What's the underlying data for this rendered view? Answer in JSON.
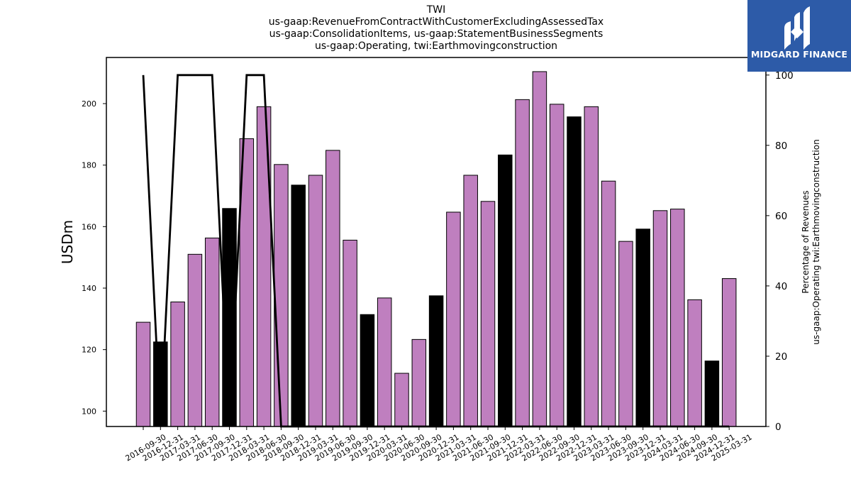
{
  "title_lines": [
    "TWI",
    "us-gaap:RevenueFromContractWithCustomerExcludingAssessedTax",
    "us-gaap:ConsolidationItems, us-gaap:StatementBusinessSegments",
    "us-gaap:Operating, twi:Earthmovingconstruction"
  ],
  "logo": {
    "text": "MIDGARD FINANCE",
    "bg_color": "#2d5ba8",
    "fg_color": "#ffffff"
  },
  "chart_data": {
    "type": "bar",
    "categories": [
      "2016-09-30",
      "2016-12-31",
      "2017-03-31",
      "2017-06-30",
      "2017-09-30",
      "2017-12-31",
      "2018-03-31",
      "2018-06-30",
      "2018-09-30",
      "2018-12-31",
      "2019-03-31",
      "2019-06-30",
      "2019-09-30",
      "2019-12-31",
      "2020-03-31",
      "2020-06-30",
      "2020-09-30",
      "2020-12-31",
      "2021-03-31",
      "2021-06-30",
      "2021-09-30",
      "2021-12-31",
      "2022-03-31",
      "2022-06-30",
      "2022-09-30",
      "2022-12-31",
      "2023-03-31",
      "2023-06-30",
      "2023-09-30",
      "2023-12-31",
      "2024-03-31",
      "2024-06-30",
      "2024-09-30",
      "2024-12-31",
      "2025-03-31"
    ],
    "values": [
      128.9,
      122.5,
      135.5,
      151.0,
      156.3,
      165.9,
      188.6,
      199.0,
      180.2,
      173.5,
      176.7,
      184.8,
      155.6,
      131.4,
      136.8,
      112.3,
      123.3,
      137.5,
      164.7,
      176.7,
      168.2,
      183.3,
      201.3,
      210.4,
      199.8,
      195.7,
      199.0,
      174.8,
      155.2,
      159.2,
      165.2,
      165.7,
      136.2,
      116.3,
      143.1
    ],
    "highlight_flags": [
      0,
      1,
      0,
      0,
      0,
      1,
      0,
      0,
      0,
      1,
      0,
      0,
      0,
      1,
      0,
      0,
      0,
      1,
      0,
      0,
      0,
      1,
      0,
      0,
      0,
      1,
      0,
      0,
      0,
      1,
      0,
      0,
      0,
      1,
      0
    ],
    "bar_color": "#bf7fbf",
    "highlight_color": "#000000",
    "ylabel": "USDm",
    "ylim": [
      95,
      215
    ],
    "yticks": [
      100,
      120,
      140,
      160,
      180,
      200
    ],
    "secondary": {
      "name": "Percentage of Revenues us-gaap:Operating twi:Earthmovingconstruction",
      "ylabel_lines": [
        "Percentage of Revenues",
        "us-gaap:Operating twi:Earthmovingconstruction"
      ],
      "values": [
        100,
        0,
        100,
        100,
        100,
        0,
        100,
        100,
        0,
        0,
        0,
        0,
        0,
        0,
        0,
        0,
        0,
        0,
        0,
        0,
        0,
        0,
        0,
        0,
        0,
        0,
        0,
        0,
        0,
        0,
        0,
        0,
        0,
        0,
        0
      ],
      "ylim": [
        0,
        105
      ],
      "yticks": [
        0,
        20,
        40,
        60,
        80,
        100
      ],
      "line_color": "#000000"
    },
    "grid": false
  }
}
